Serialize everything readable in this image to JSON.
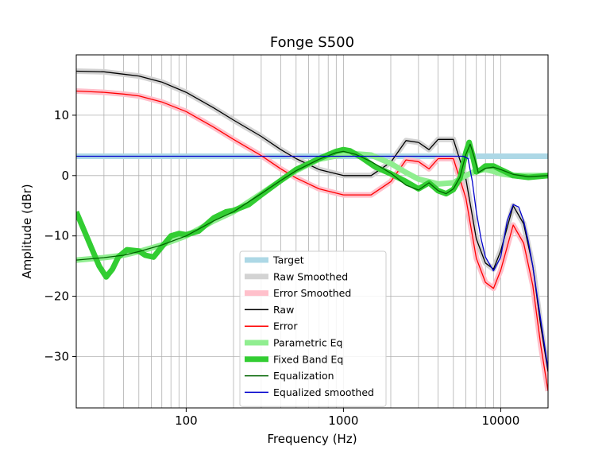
{
  "chart_data": {
    "type": "line",
    "title": "Fonge S500",
    "xlabel": "Frequency (Hz)",
    "ylabel": "Amplitude (dBr)",
    "xscale": "log",
    "xlim": [
      20,
      20000
    ],
    "ylim": [
      -38.5,
      20
    ],
    "x_ticks": [
      100,
      1000,
      10000
    ],
    "x_tick_labels": [
      "100",
      "1000",
      "10000"
    ],
    "y_ticks": [
      -30,
      -20,
      -10,
      0,
      10
    ],
    "y_tick_labels": [
      "−30",
      "−20",
      "−10",
      "0",
      "10"
    ],
    "grid": true,
    "legend_placement": "lower center",
    "series": [
      {
        "name": "Target",
        "color": "#add8e6",
        "x": [
          20,
          20000
        ],
        "y": [
          3.2,
          3.2
        ]
      },
      {
        "name": "Raw Smoothed",
        "color": "#d3d3d3",
        "x": [
          20,
          30,
          40,
          50,
          70,
          100,
          150,
          200,
          300,
          400,
          500,
          700,
          1000,
          1500,
          2000,
          2500,
          3000,
          3500,
          4000,
          5000,
          6000,
          7000,
          8000,
          9000,
          10000,
          12000,
          14000,
          16000,
          18000,
          20000
        ],
        "y": [
          17.3,
          17.2,
          16.8,
          16.5,
          15.5,
          13.8,
          11.2,
          9.2,
          6.5,
          4.3,
          2.8,
          1.0,
          0.0,
          0.0,
          2.2,
          5.8,
          5.5,
          4.3,
          6.0,
          6.0,
          -0.5,
          -10.5,
          -14.5,
          -15.5,
          -12.5,
          -5.0,
          -8.0,
          -15.0,
          -25.0,
          -32.5
        ]
      },
      {
        "name": "Error Smoothed",
        "color": "#ffc0cb",
        "x": [
          20,
          30,
          40,
          50,
          70,
          100,
          150,
          200,
          300,
          400,
          500,
          700,
          1000,
          1500,
          2000,
          2500,
          3000,
          3500,
          4000,
          5000,
          6000,
          7000,
          8000,
          9000,
          10000,
          12000,
          14000,
          16000,
          18000,
          20000
        ],
        "y": [
          14.0,
          13.8,
          13.5,
          13.2,
          12.2,
          10.6,
          8.0,
          6.0,
          3.3,
          1.1,
          -0.4,
          -2.2,
          -3.2,
          -3.2,
          -1.0,
          2.6,
          2.3,
          1.1,
          2.8,
          2.8,
          -3.7,
          -13.7,
          -17.7,
          -18.7,
          -15.7,
          -8.2,
          -11.2,
          -18.2,
          -28.2,
          -35.7
        ]
      },
      {
        "name": "Raw",
        "color": "#000000",
        "x": [
          20,
          30,
          40,
          50,
          70,
          100,
          150,
          200,
          300,
          400,
          500,
          700,
          1000,
          1500,
          2000,
          2500,
          3000,
          3500,
          4000,
          5000,
          6000,
          7000,
          8000,
          9000,
          10000,
          12000,
          14000,
          16000,
          18000,
          20000
        ],
        "y": [
          17.3,
          17.2,
          16.8,
          16.5,
          15.5,
          13.8,
          11.2,
          9.2,
          6.5,
          4.3,
          2.8,
          1.0,
          0.0,
          0.0,
          2.2,
          5.8,
          5.5,
          4.3,
          6.0,
          6.0,
          -0.5,
          -10.5,
          -14.5,
          -15.5,
          -12.5,
          -5.0,
          -8.0,
          -15.0,
          -25.0,
          -32.5
        ]
      },
      {
        "name": "Error",
        "color": "#ff0000",
        "x": [
          20,
          30,
          40,
          50,
          70,
          100,
          150,
          200,
          300,
          400,
          500,
          700,
          1000,
          1500,
          2000,
          2500,
          3000,
          3500,
          4000,
          5000,
          6000,
          7000,
          8000,
          9000,
          10000,
          12000,
          14000,
          16000,
          18000,
          20000
        ],
        "y": [
          14.0,
          13.8,
          13.5,
          13.2,
          12.2,
          10.6,
          8.0,
          6.0,
          3.3,
          1.1,
          -0.4,
          -2.2,
          -3.2,
          -3.2,
          -1.0,
          2.6,
          2.3,
          1.1,
          2.8,
          2.8,
          -3.7,
          -13.7,
          -17.7,
          -18.7,
          -15.7,
          -8.2,
          -11.2,
          -18.2,
          -28.2,
          -35.7
        ]
      },
      {
        "name": "Parametric Eq",
        "color": "#90ee90",
        "x": [
          20,
          30,
          40,
          50,
          70,
          100,
          150,
          200,
          300,
          400,
          500,
          700,
          1000,
          1200,
          1500,
          2000,
          2500,
          3000,
          3500,
          4000,
          5000,
          6000,
          7000,
          8000,
          9000,
          10000,
          12000,
          15000,
          20000
        ],
        "y": [
          -14.0,
          -13.6,
          -13.2,
          -12.6,
          -11.5,
          -10.0,
          -7.5,
          -6.0,
          -3.0,
          -0.8,
          0.8,
          2.7,
          3.5,
          3.6,
          3.4,
          2.0,
          0.5,
          -0.6,
          -1.0,
          -1.4,
          -1.2,
          0.0,
          0.8,
          1.0,
          0.7,
          0.3,
          0.0,
          0.0,
          0.0
        ]
      },
      {
        "name": "Fixed Band Eq",
        "color": "#32cd32",
        "x": [
          20,
          25,
          28,
          31,
          34,
          37,
          42,
          50,
          55,
          62,
          70,
          80,
          90,
          100,
          120,
          150,
          180,
          200,
          250,
          300,
          400,
          500,
          700,
          900,
          1000,
          1100,
          1300,
          1600,
          2000,
          2500,
          3000,
          3500,
          4000,
          4500,
          5000,
          5500,
          6000,
          6300,
          6600,
          7000,
          7500,
          8000,
          9000,
          10000,
          12000,
          15000,
          20000
        ],
        "y": [
          -6.0,
          -12.0,
          -15.0,
          -16.8,
          -15.5,
          -13.5,
          -12.3,
          -12.5,
          -13.2,
          -13.5,
          -11.8,
          -10.0,
          -9.6,
          -9.8,
          -9.2,
          -7.0,
          -6.0,
          -5.8,
          -4.8,
          -3.2,
          -0.8,
          1.0,
          2.8,
          4.0,
          4.3,
          4.1,
          3.0,
          1.4,
          0.3,
          -1.0,
          -2.2,
          -1.2,
          -2.5,
          -3.0,
          -2.3,
          -0.5,
          3.8,
          5.5,
          3.5,
          0.6,
          1.0,
          1.6,
          1.6,
          1.0,
          0.0,
          -0.3,
          0.0
        ]
      },
      {
        "name": "Equalization",
        "color": "#006400",
        "x": [
          20,
          30,
          40,
          50,
          70,
          100,
          150,
          200,
          300,
          400,
          500,
          700,
          900,
          1000,
          1200,
          1500,
          2000,
          2500,
          3000,
          3500,
          4000,
          4500,
          5000,
          5500,
          6000,
          6400,
          6800,
          7200,
          8000,
          9000,
          10000,
          12000,
          15000,
          20000
        ],
        "y": [
          -14.0,
          -13.6,
          -13.2,
          -12.6,
          -11.5,
          -10.0,
          -7.5,
          -6.0,
          -3.0,
          -0.8,
          0.8,
          2.7,
          3.8,
          4.0,
          3.5,
          2.3,
          0.4,
          -1.6,
          -2.4,
          -1.2,
          -2.5,
          -3.0,
          -2.2,
          -0.3,
          3.5,
          5.2,
          3.0,
          0.5,
          1.2,
          1.4,
          1.0,
          0.2,
          -0.2,
          0.0
        ]
      },
      {
        "name": "Equalized smoothed",
        "color": "#0000cd",
        "x": [
          20,
          1000,
          2000,
          3000,
          4000,
          5000,
          5800,
          6200,
          6600,
          7000,
          7500,
          8000,
          9000,
          10000,
          11000,
          12000,
          13000,
          14000,
          15000,
          16000,
          18000,
          20000
        ],
        "y": [
          3.2,
          3.2,
          3.2,
          3.2,
          3.2,
          3.2,
          3.2,
          2.8,
          -1.0,
          -6.0,
          -10.5,
          -13.5,
          -15.8,
          -13.5,
          -7.5,
          -4.8,
          -5.2,
          -7.5,
          -11.0,
          -15.0,
          -24.0,
          -32.0
        ]
      }
    ],
    "legend": [
      {
        "label": "Target",
        "color": "#add8e6",
        "style": "thick"
      },
      {
        "label": "Raw Smoothed",
        "color": "#d3d3d3",
        "style": "thick"
      },
      {
        "label": "Error Smoothed",
        "color": "#ffc0cb",
        "style": "thick"
      },
      {
        "label": "Raw",
        "color": "#000000",
        "style": "thin"
      },
      {
        "label": "Error",
        "color": "#ff0000",
        "style": "thin"
      },
      {
        "label": "Parametric Eq",
        "color": "#90ee90",
        "style": "thick"
      },
      {
        "label": "Fixed Band Eq",
        "color": "#32cd32",
        "style": "thick"
      },
      {
        "label": "Equalization",
        "color": "#006400",
        "style": "thin"
      },
      {
        "label": "Equalized smoothed",
        "color": "#0000cd",
        "style": "thin"
      }
    ]
  }
}
